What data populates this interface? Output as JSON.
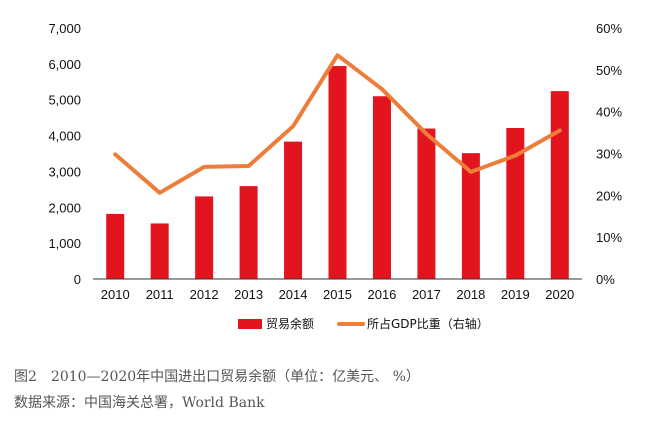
{
  "chart_data": {
    "type": "bar+line",
    "categories": [
      "2010",
      "2011",
      "2012",
      "2013",
      "2014",
      "2015",
      "2016",
      "2017",
      "2018",
      "2019",
      "2020"
    ],
    "series": [
      {
        "name": "贸易余额",
        "type": "bar",
        "axis": "left",
        "values": [
          1815,
          1549,
          2303,
          2590,
          3831,
          5939,
          5097,
          4196,
          3509,
          4211,
          5240
        ]
      },
      {
        "name": "所占GDP比重（右轴）",
        "type": "line",
        "axis": "right",
        "values": [
          29.8,
          20.6,
          26.8,
          27.0,
          36.5,
          53.5,
          45.4,
          34.7,
          25.6,
          29.5,
          35.5
        ]
      }
    ],
    "left_axis": {
      "ylim": [
        0,
        7000
      ],
      "ticks": [
        "0",
        "1,000",
        "2,000",
        "3,000",
        "4,000",
        "5,000",
        "6,000",
        "7,000"
      ]
    },
    "right_axis": {
      "ylim": [
        0,
        60
      ],
      "ticks": [
        "0%",
        "10%",
        "20%",
        "30%",
        "40%",
        "50%",
        "60%"
      ]
    },
    "legend_position": "bottom",
    "grid": false,
    "colors": {
      "bar": "#E2141E",
      "line": "#EE7D3A",
      "axis": "#333333"
    }
  },
  "caption": {
    "title": "图2　2010—2020年中国进出口贸易余额（单位：亿美元、 %）",
    "source": "数据来源：中国海关总署，World Bank"
  }
}
